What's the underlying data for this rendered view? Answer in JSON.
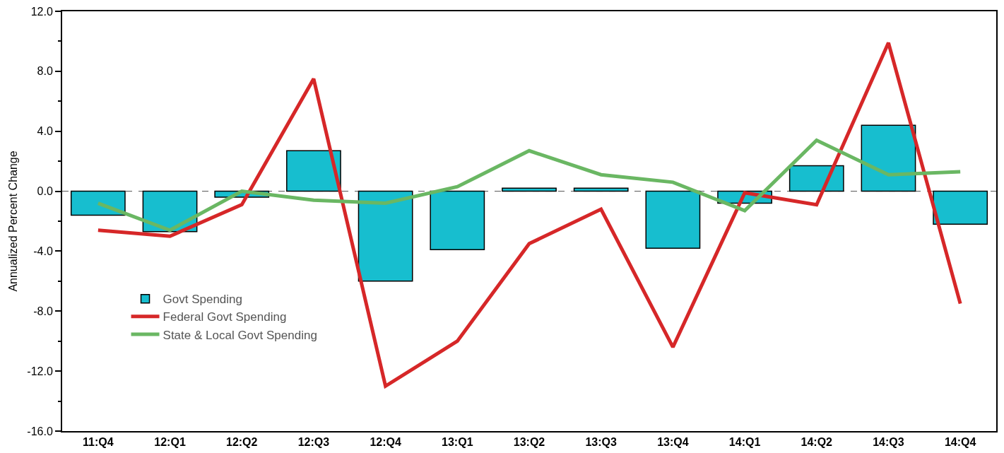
{
  "chart_data": {
    "type": "bar",
    "ylabel": "Annualized Percent Change",
    "categories": [
      "11:Q4",
      "12:Q1",
      "12:Q2",
      "12:Q3",
      "12:Q4",
      "13:Q1",
      "13:Q2",
      "13:Q3",
      "13:Q4",
      "14:Q1",
      "14:Q2",
      "14:Q3",
      "14:Q4"
    ],
    "series": [
      {
        "name": "Govt Spending",
        "color": "#17becf",
        "values": [
          -1.6,
          -2.7,
          -0.4,
          2.7,
          -6.0,
          -3.9,
          0.2,
          0.2,
          -3.8,
          -0.8,
          1.7,
          4.4,
          -2.2
        ]
      },
      {
        "name": "Federal Govt Spending",
        "type": "line",
        "color": "#d62728",
        "values": [
          -2.6,
          -3.0,
          -0.9,
          7.5,
          -13.0,
          -10.0,
          -3.5,
          -1.2,
          -10.4,
          -0.1,
          -0.9,
          9.9,
          -7.5
        ]
      },
      {
        "name": "State & Local Govt Spending",
        "type": "line",
        "color": "#6ab763",
        "values": [
          -0.8,
          -2.6,
          0.0,
          -0.6,
          -0.8,
          0.3,
          2.7,
          1.1,
          0.6,
          -1.3,
          3.4,
          1.1,
          1.3
        ]
      }
    ],
    "ylim": [
      -16,
      12
    ],
    "yticks": [
      {
        "value": -16,
        "label": "-16.0"
      },
      {
        "value": -12,
        "label": "-12.0"
      },
      {
        "value": -8,
        "label": "-8.0"
      },
      {
        "value": -4,
        "label": "-4.0"
      },
      {
        "value": 0,
        "label": "0.0"
      },
      {
        "value": 4,
        "label": "4.0"
      },
      {
        "value": 8,
        "label": "8.0"
      },
      {
        "value": 12,
        "label": "12.0"
      }
    ],
    "ref_lines": [
      {
        "axis": "y",
        "value": 0,
        "color": "#555555",
        "line_style": "dashed"
      }
    ],
    "grid": false,
    "legend": "bottom left",
    "line_style": "solid",
    "marker": "none"
  }
}
